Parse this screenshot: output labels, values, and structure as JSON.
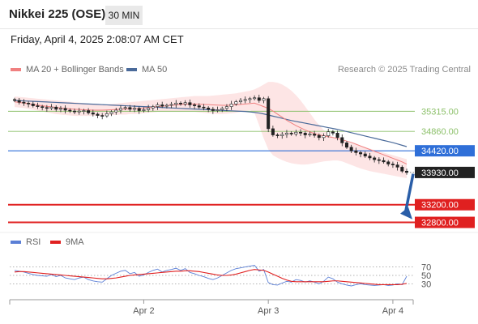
{
  "header": {
    "title": "Nikkei 225 (OSE)",
    "timeframe": "30 MIN",
    "datetime": "Friday, April 4, 2025 2:08:07 AM CET"
  },
  "legend": {
    "ma20_label": "MA 20 + Bollinger Bands",
    "ma50_label": "MA 50",
    "credit": "Research © 2025 Trading Central"
  },
  "colors": {
    "ma20": "#f08080",
    "band": "#fde0e0",
    "ma50": "#4a6a9a",
    "bull": "#ffffff",
    "bear": "#222222",
    "resistance": "#8cc06a",
    "pivot": "#2f6fd8",
    "support": "#e02020",
    "last": "#222222",
    "rsi": "#5b7fd6",
    "rsi_ma": "#e02020",
    "arrow": "#2a5ea8"
  },
  "chart_data": [
    {
      "type": "candlestick",
      "title": "Nikkei 225 (OSE)",
      "price_range": [
        32700,
        36000
      ],
      "x_ticks": [
        {
          "label": "Apr 2",
          "index": 28
        },
        {
          "label": "Apr 3",
          "index": 55
        },
        {
          "label": "Apr 4",
          "index": 82
        }
      ],
      "num_bars": 86,
      "levels": [
        {
          "name": "resistance-2",
          "value": 35315.0,
          "label": "35315.00",
          "kind": "resistance"
        },
        {
          "name": "resistance-1",
          "value": 34860.0,
          "label": "34860.00",
          "kind": "resistance"
        },
        {
          "name": "pivot",
          "value": 34420.0,
          "label": "34420.00",
          "kind": "pivot"
        },
        {
          "name": "last-price",
          "value": 33930.0,
          "label": "33930.00",
          "kind": "last"
        },
        {
          "name": "support-1",
          "value": 33200.0,
          "label": "33200.00",
          "kind": "support"
        },
        {
          "name": "support-2",
          "value": 32800.0,
          "label": "32800.00",
          "kind": "support"
        }
      ],
      "close": [
        35560,
        35520,
        35500,
        35480,
        35440,
        35420,
        35400,
        35380,
        35410,
        35360,
        35380,
        35340,
        35320,
        35300,
        35320,
        35330,
        35280,
        35250,
        35220,
        35210,
        35260,
        35300,
        35340,
        35380,
        35400,
        35360,
        35380,
        35330,
        35350,
        35390,
        35420,
        35460,
        35430,
        35450,
        35470,
        35500,
        35480,
        35510,
        35460,
        35440,
        35410,
        35390,
        35360,
        35330,
        35350,
        35380,
        35420,
        35480,
        35530,
        35560,
        35580,
        35600,
        35620,
        35560,
        35600,
        34920,
        34780,
        34760,
        34790,
        34820,
        34800,
        34840,
        34820,
        34780,
        34800,
        34770,
        34720,
        34760,
        34850,
        34820,
        34720,
        34600,
        34500,
        34420,
        34380,
        34350,
        34300,
        34260,
        34220,
        34200,
        34170,
        34120,
        34100,
        34050,
        33960,
        33930
      ],
      "ma20": [
        35530,
        35515,
        35500,
        35485,
        35470,
        35455,
        35440,
        35425,
        35415,
        35400,
        35390,
        35380,
        35370,
        35360,
        35355,
        35350,
        35345,
        35340,
        35340,
        35340,
        35345,
        35350,
        35355,
        35360,
        35365,
        35370,
        35375,
        35380,
        35390,
        35400,
        35410,
        35420,
        35430,
        35440,
        35450,
        35460,
        35470,
        35475,
        35480,
        35480,
        35475,
        35470,
        35465,
        35460,
        35455,
        35450,
        35450,
        35455,
        35460,
        35470,
        35480,
        35490,
        35500,
        35460,
        35420,
        35380,
        35320,
        35250,
        35180,
        35110,
        35050,
        34990,
        34940,
        34890,
        34850,
        34810,
        34780,
        34760,
        34740,
        34720,
        34700,
        34670,
        34640,
        34610,
        34570,
        34530,
        34490,
        34450,
        34410,
        34370,
        34330,
        34290,
        34250,
        34210,
        34170,
        34120
      ],
      "band_upper": [
        35650,
        35640,
        35630,
        35620,
        35610,
        35600,
        35590,
        35580,
        35570,
        35560,
        35550,
        35540,
        35530,
        35520,
        35510,
        35500,
        35490,
        35480,
        35470,
        35460,
        35470,
        35480,
        35490,
        35500,
        35510,
        35520,
        35530,
        35540,
        35550,
        35560,
        35570,
        35580,
        35590,
        35600,
        35610,
        35620,
        35630,
        35640,
        35650,
        35660,
        35660,
        35660,
        35660,
        35670,
        35680,
        35690,
        35700,
        35710,
        35720,
        35740,
        35760,
        35780,
        35810,
        35860,
        35920,
        35980,
        35980,
        35960,
        35920,
        35860,
        35780,
        35680,
        35560,
        35420,
        35280,
        35130,
        35000,
        34890,
        34800,
        34740,
        34700,
        34660,
        34620,
        34590,
        34560,
        34530,
        34500,
        34470,
        34440,
        34410,
        34380,
        34350,
        34320,
        34290,
        34260,
        34230
      ],
      "band_lower": [
        35410,
        35400,
        35390,
        35370,
        35350,
        35330,
        35310,
        35290,
        35270,
        35250,
        35240,
        35230,
        35220,
        35210,
        35210,
        35210,
        35210,
        35210,
        35210,
        35210,
        35220,
        35230,
        35230,
        35240,
        35240,
        35250,
        35250,
        35260,
        35270,
        35280,
        35290,
        35300,
        35300,
        35300,
        35300,
        35300,
        35300,
        35300,
        35300,
        35300,
        35290,
        35280,
        35270,
        35260,
        35250,
        35250,
        35260,
        35270,
        35280,
        35300,
        35320,
        35340,
        35280,
        35000,
        34700,
        34450,
        34320,
        34260,
        34210,
        34170,
        34140,
        34120,
        34110,
        34110,
        34120,
        34140,
        34160,
        34180,
        34190,
        34200,
        34200,
        34180,
        34140,
        34100,
        34060,
        34020,
        33990,
        33960,
        33940,
        33920,
        33900,
        33880,
        33860,
        33840,
        33820,
        33800
      ],
      "ma50": [
        35560,
        35555,
        35550,
        35545,
        35540,
        35535,
        35530,
        35525,
        35520,
        35515,
        35510,
        35505,
        35500,
        35495,
        35490,
        35485,
        35480,
        35475,
        35470,
        35465,
        35460,
        35455,
        35450,
        35445,
        35440,
        35435,
        35430,
        35425,
        35420,
        35415,
        35410,
        35405,
        35400,
        35395,
        35390,
        35385,
        35380,
        35375,
        35370,
        35365,
        35360,
        35355,
        35350,
        35345,
        35340,
        35335,
        35330,
        35325,
        35320,
        35315,
        35310,
        35300,
        35290,
        35275,
        35255,
        35230,
        35205,
        35180,
        35155,
        35130,
        35105,
        35085,
        35065,
        35045,
        35025,
        35005,
        34985,
        34965,
        34945,
        34925,
        34905,
        34880,
        34855,
        34830,
        34805,
        34780,
        34755,
        34730,
        34705,
        34680,
        34655,
        34630,
        34605,
        34575,
        34545,
        34515
      ]
    },
    {
      "type": "line",
      "title": "RSI",
      "ylim": [
        0,
        100
      ],
      "y_ticks": [
        70,
        50,
        30
      ],
      "series": [
        {
          "name": "RSI",
          "values": [
            62,
            60,
            58,
            55,
            52,
            50,
            49,
            48,
            52,
            47,
            50,
            44,
            42,
            40,
            44,
            46,
            40,
            37,
            35,
            34,
            42,
            50,
            55,
            60,
            62,
            54,
            57,
            48,
            51,
            57,
            62,
            65,
            58,
            62,
            64,
            67,
            62,
            66,
            57,
            54,
            50,
            47,
            43,
            40,
            44,
            50,
            56,
            62,
            66,
            68,
            70,
            72,
            74,
            60,
            64,
            33,
            28,
            27,
            32,
            36,
            34,
            40,
            38,
            34,
            37,
            34,
            30,
            36,
            46,
            42,
            34,
            30,
            27,
            25,
            28,
            30,
            28,
            27,
            26,
            27,
            28,
            26,
            27,
            30,
            28,
            48
          ]
        },
        {
          "name": "9MA",
          "values": [
            58,
            59,
            59,
            58,
            57,
            56,
            55,
            54,
            53,
            52,
            51,
            50,
            49,
            48,
            47,
            46,
            45,
            44,
            43,
            42,
            42,
            43,
            44,
            46,
            48,
            50,
            51,
            52,
            53,
            54,
            55,
            56,
            57,
            58,
            59,
            60,
            60,
            61,
            61,
            60,
            59,
            57,
            55,
            53,
            51,
            50,
            50,
            51,
            53,
            56,
            59,
            62,
            64,
            63,
            62,
            58,
            53,
            48,
            43,
            39,
            36,
            35,
            35,
            35,
            35,
            35,
            35,
            35,
            36,
            37,
            37,
            36,
            35,
            34,
            33,
            32,
            31,
            30,
            29,
            28,
            28,
            28,
            28,
            28,
            29,
            31
          ]
        }
      ]
    }
  ]
}
